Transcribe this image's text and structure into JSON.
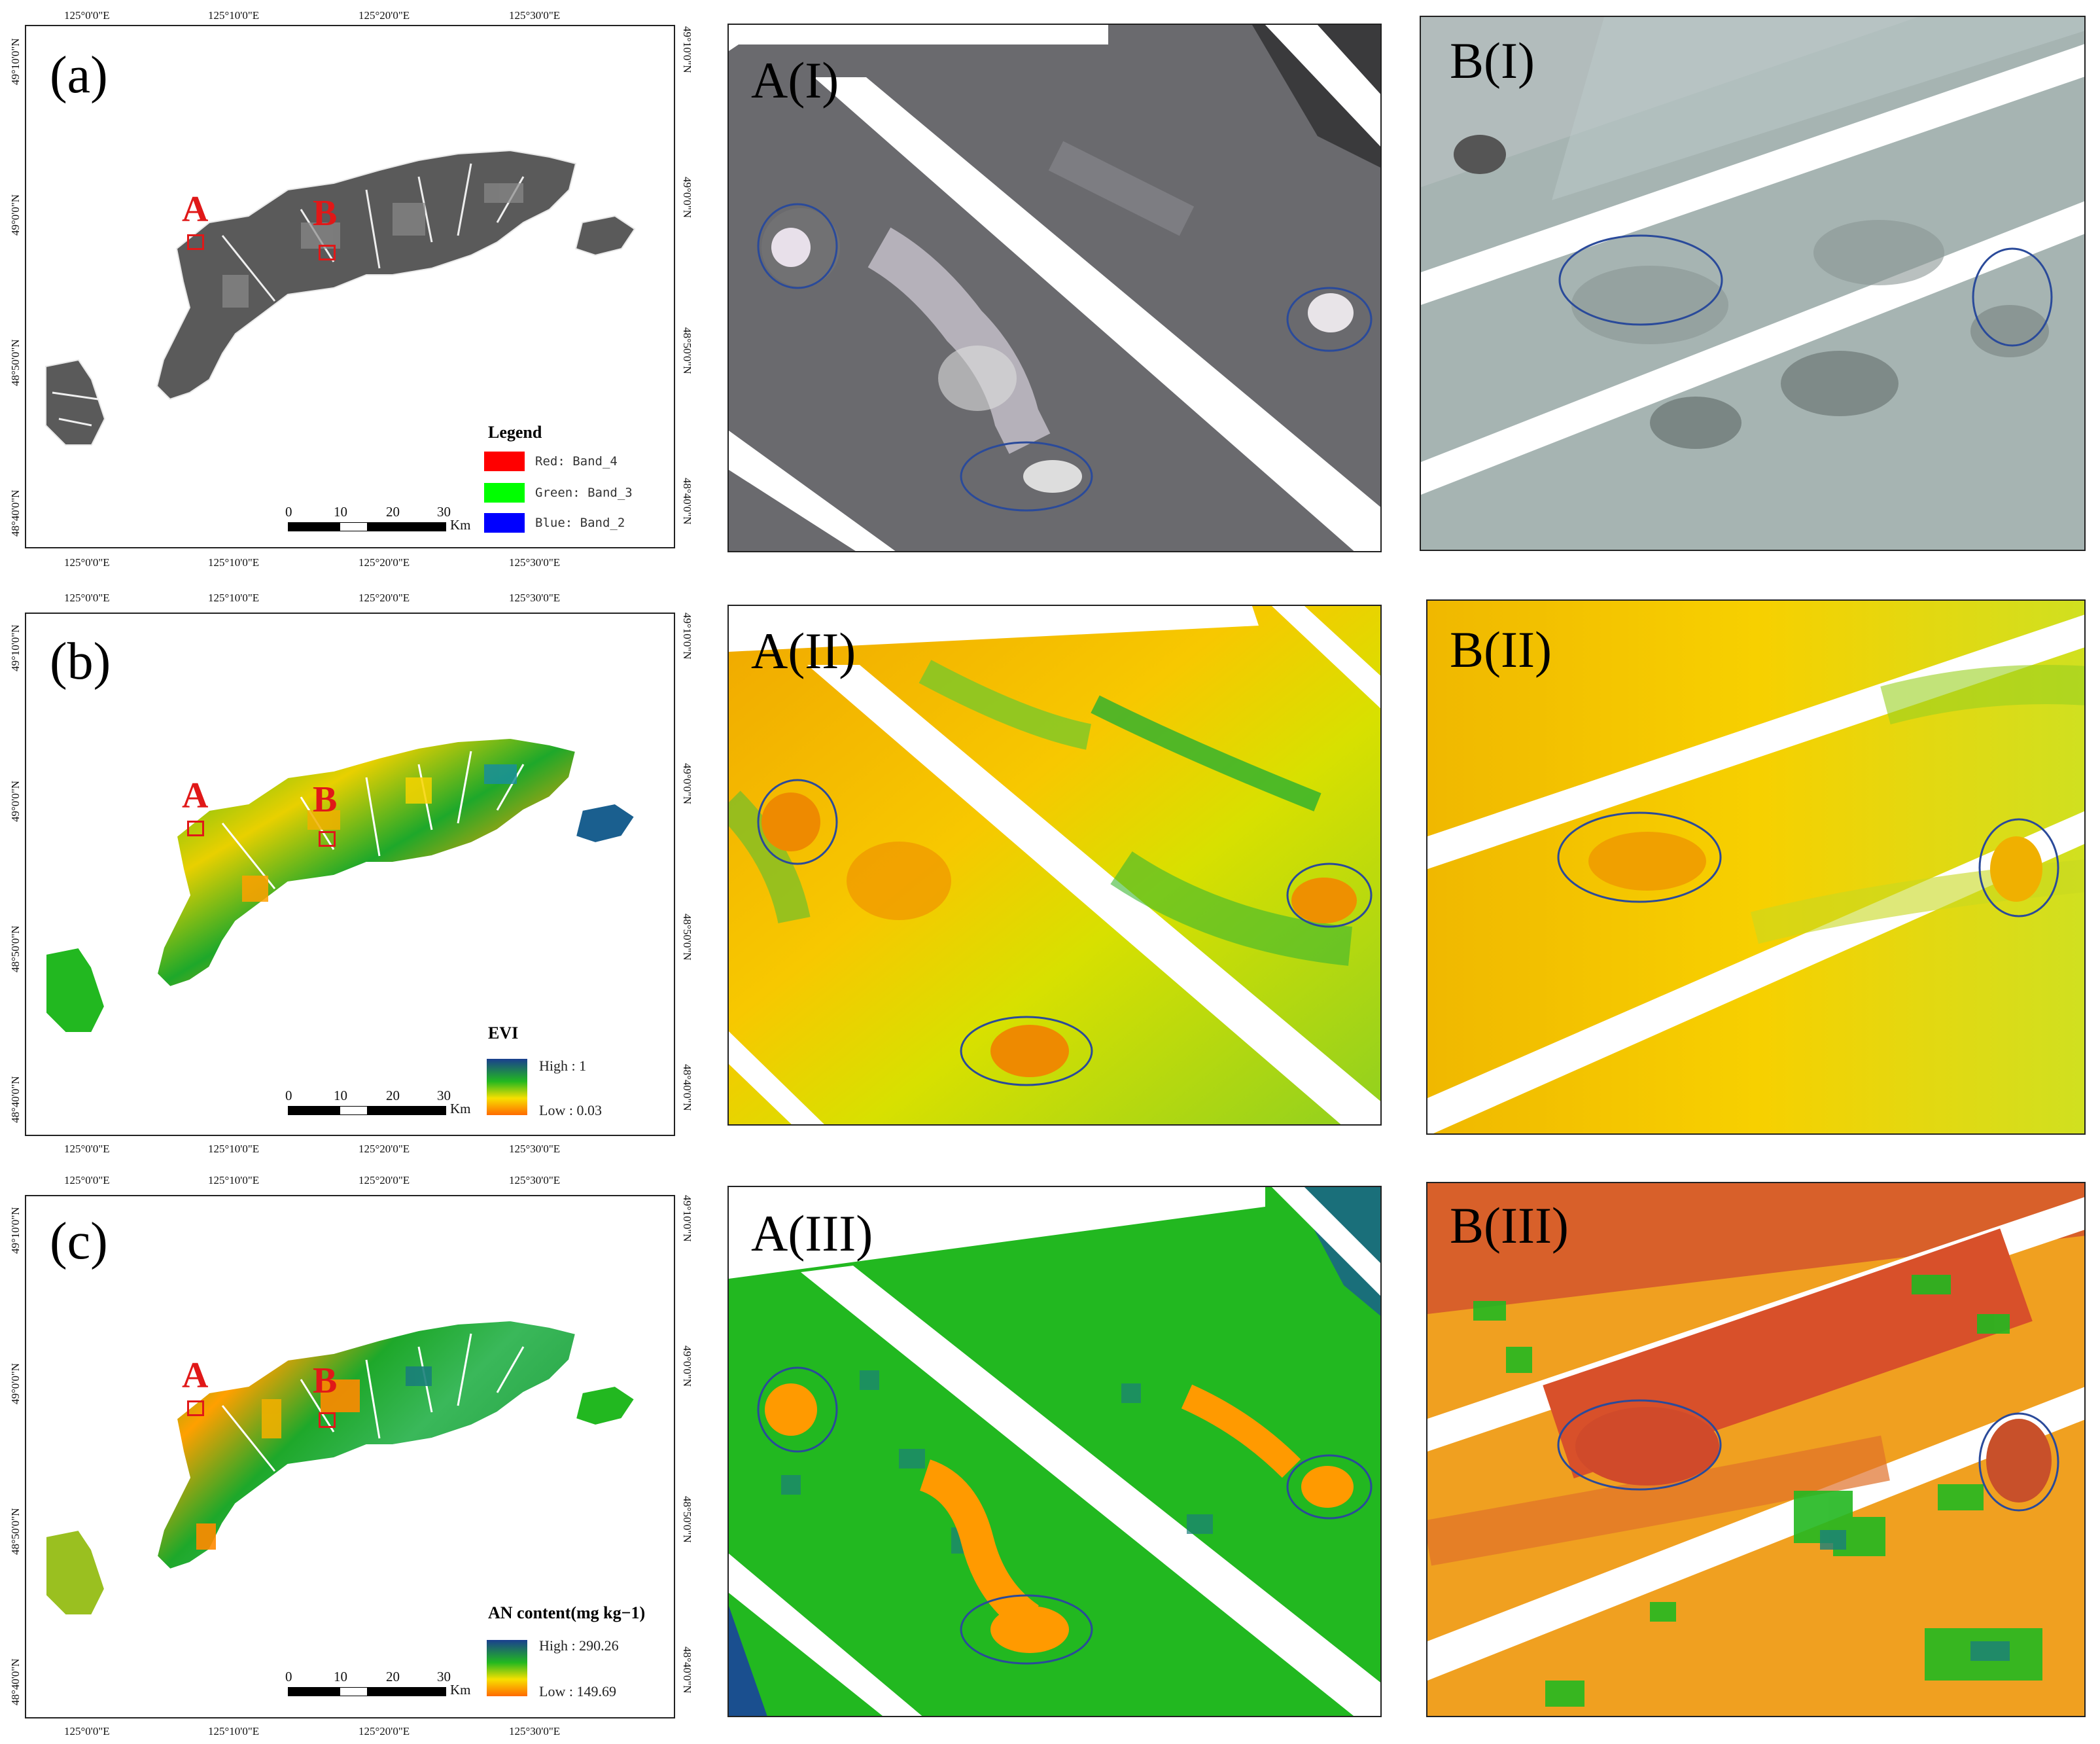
{
  "lon_ticks": [
    "125°0'0\"E",
    "125°10'0\"E",
    "125°20'0\"E",
    "125°30'0\"E"
  ],
  "lat_ticks": [
    "49°10'0\"N",
    "49°0'0\"N",
    "48°50'0\"N",
    "48°40'0\"N"
  ],
  "sites": [
    "A",
    "B"
  ],
  "scale_bar": {
    "labels": [
      "0",
      "10",
      "20",
      "30"
    ],
    "unit": "Km"
  },
  "panels": [
    {
      "label": "(a)",
      "legend_title": "Legend",
      "legend_items": [
        {
          "text": "Red:    Band_4",
          "color": "#ff0000"
        },
        {
          "text": "Green:  Band_3",
          "color": "#00ff00"
        },
        {
          "text": "Blue:   Band_2",
          "color": "#0000ff"
        }
      ]
    },
    {
      "label": "(b)",
      "legend_title": "EVI",
      "high": "High : 1",
      "low": "Low : 0.03"
    },
    {
      "label": "(c)",
      "legend_title": "AN content(mg kg−1)",
      "high": "High : 290.26",
      "low": "Low : 149.69"
    }
  ],
  "zoom_panels": [
    {
      "label": "A(I)",
      "style": "gray-dark"
    },
    {
      "label": "B(I)",
      "style": "gray-light"
    },
    {
      "label": "A(II)",
      "style": "evi"
    },
    {
      "label": "B(II)",
      "style": "evi"
    },
    {
      "label": "A(III)",
      "style": "an-green"
    },
    {
      "label": "B(III)",
      "style": "an-red"
    }
  ],
  "colors": {
    "site_marker": "#e01818",
    "ellipse": "#2a4a9a",
    "ramp_high": "#1a3f8f",
    "ramp_mid": "#22b820",
    "ramp_low": "#ff6a00"
  }
}
